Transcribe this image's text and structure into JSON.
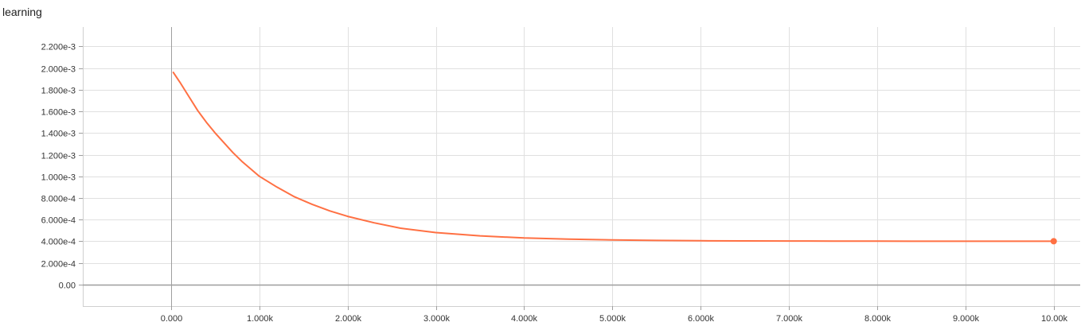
{
  "chart_data": {
    "type": "line",
    "title": "learning",
    "xlabel": "",
    "ylabel": "",
    "xlim": [
      -1000,
      10300
    ],
    "ylim": [
      -0.0002,
      0.00238
    ],
    "x_ticks": [
      0,
      1000,
      2000,
      3000,
      4000,
      5000,
      6000,
      7000,
      8000,
      9000,
      10000
    ],
    "x_tick_labels": [
      "0.000",
      "1.000k",
      "2.000k",
      "3.000k",
      "4.000k",
      "5.000k",
      "6.000k",
      "7.000k",
      "8.000k",
      "9.000k",
      "10.00k"
    ],
    "y_ticks": [
      0,
      0.0002,
      0.0004,
      0.0006,
      0.0008,
      0.001,
      0.0012,
      0.0014,
      0.0016,
      0.0018,
      0.002,
      0.0022
    ],
    "y_tick_labels": [
      "0.00",
      "2.000e-4",
      "4.000e-4",
      "6.000e-4",
      "8.000e-4",
      "1.000e-3",
      "1.200e-3",
      "1.400e-3",
      "1.600e-3",
      "1.800e-3",
      "2.000e-3",
      "2.200e-3"
    ],
    "grid": true,
    "series": [
      {
        "color": "#ff7043",
        "x": [
          25,
          100,
          200,
          300,
          400,
          500,
          600,
          700,
          800,
          900,
          1000,
          1200,
          1400,
          1600,
          1800,
          2000,
          2300,
          2600,
          3000,
          3500,
          4000,
          4500,
          5000,
          5500,
          6000,
          6500,
          7000,
          7500,
          8000,
          8500,
          9000,
          9500,
          10000
        ],
        "y": [
          0.00196,
          0.00187,
          0.00174,
          0.00161,
          0.0015,
          0.0014,
          0.00131,
          0.00122,
          0.00114,
          0.00107,
          0.001,
          0.0009,
          0.00081,
          0.00074,
          0.00068,
          0.00063,
          0.00057,
          0.00052,
          0.00048,
          0.00045,
          0.00043,
          0.00042,
          0.000412,
          0.000407,
          0.000404,
          0.000403,
          0.000402,
          0.000401,
          0.000401,
          0.0004,
          0.0004,
          0.0004,
          0.0004
        ],
        "end_marker": true
      }
    ]
  }
}
